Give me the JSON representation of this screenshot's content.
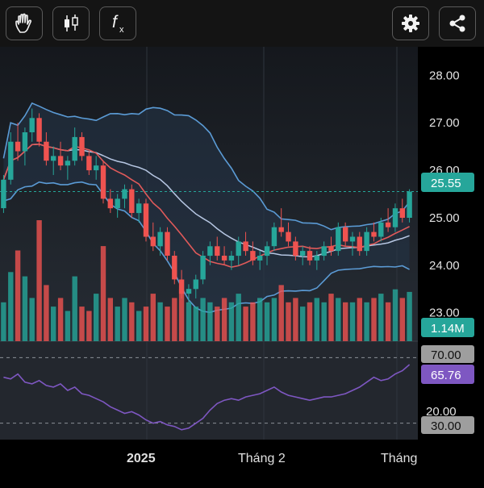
{
  "toolbar": {
    "left_buttons": [
      {
        "icon": "hand-icon",
        "name": "pan-tool-button"
      },
      {
        "icon": "candlestick-icon",
        "name": "chart-type-button"
      },
      {
        "icon": "function-icon",
        "name": "indicators-button",
        "glyph": "f",
        "subglyph": "x"
      }
    ],
    "right_buttons": [
      {
        "icon": "gear-icon",
        "name": "settings-button"
      },
      {
        "icon": "share-icon",
        "name": "share-button"
      }
    ]
  },
  "price_axis": [
    "28.00",
    "27.00",
    "26.00",
    "25.00",
    "24.00",
    "23.00"
  ],
  "current_price": "25.55",
  "volume_label": "1.14M",
  "rsi_axis": [
    "70.00",
    "20.00",
    "30.00"
  ],
  "rsi_value": "65.76",
  "x_axis": [
    "2025",
    "Tháng 2",
    "Tháng"
  ],
  "colors": {
    "up": "#26a69a",
    "down": "#ef5350",
    "bollinger": "#5b9bd5",
    "ma_red": "#e05a5a",
    "ma_light": "#b7c7e3",
    "rsi": "#7e57c2",
    "panel_bg": "#1d2127",
    "bb_fill": "#243548"
  },
  "chart_data": {
    "type": "candlestick",
    "ylim": [
      22.4,
      28.6
    ],
    "price_ticks": [
      28,
      27,
      26,
      25,
      24,
      23
    ],
    "current_price": 25.55,
    "candles": [
      [
        25.2,
        25.9,
        25.1,
        25.8
      ],
      [
        25.8,
        26.8,
        25.7,
        26.6
      ],
      [
        26.6,
        27.0,
        26.2,
        26.4
      ],
      [
        26.4,
        26.9,
        26.1,
        26.8
      ],
      [
        26.8,
        27.3,
        26.6,
        27.1
      ],
      [
        27.1,
        27.2,
        26.5,
        26.6
      ],
      [
        26.6,
        26.8,
        26.1,
        26.2
      ],
      [
        26.2,
        26.5,
        25.9,
        26.3
      ],
      [
        26.3,
        26.6,
        26.0,
        26.1
      ],
      [
        26.1,
        26.3,
        25.8,
        26.2
      ],
      [
        26.2,
        26.9,
        26.1,
        26.7
      ],
      [
        26.7,
        26.8,
        26.2,
        26.3
      ],
      [
        26.3,
        26.4,
        25.9,
        26.0
      ],
      [
        26.0,
        26.3,
        25.8,
        26.1
      ],
      [
        26.1,
        26.2,
        25.3,
        25.4
      ],
      [
        25.4,
        25.6,
        25.1,
        25.2
      ],
      [
        25.2,
        25.5,
        25.0,
        25.4
      ],
      [
        25.4,
        25.7,
        25.2,
        25.6
      ],
      [
        25.6,
        25.7,
        25.0,
        25.1
      ],
      [
        25.1,
        25.4,
        24.9,
        25.3
      ],
      [
        25.3,
        25.4,
        24.5,
        24.6
      ],
      [
        24.6,
        24.9,
        24.3,
        24.4
      ],
      [
        24.4,
        24.8,
        24.2,
        24.7
      ],
      [
        24.7,
        24.8,
        24.1,
        24.2
      ],
      [
        24.2,
        24.3,
        23.6,
        23.7
      ],
      [
        23.7,
        23.9,
        23.3,
        23.4
      ],
      [
        23.4,
        23.6,
        23.2,
        23.5
      ],
      [
        23.5,
        23.8,
        23.3,
        23.7
      ],
      [
        23.7,
        24.3,
        23.6,
        24.2
      ],
      [
        24.2,
        24.5,
        24.0,
        24.4
      ],
      [
        24.4,
        24.6,
        24.1,
        24.2
      ],
      [
        24.2,
        24.4,
        24.0,
        24.1
      ],
      [
        24.1,
        24.3,
        23.9,
        24.2
      ],
      [
        24.2,
        24.6,
        24.0,
        24.5
      ],
      [
        24.5,
        24.7,
        24.2,
        24.3
      ],
      [
        24.3,
        24.5,
        24.0,
        24.1
      ],
      [
        24.1,
        24.3,
        23.9,
        24.2
      ],
      [
        24.2,
        24.5,
        24.0,
        24.4
      ],
      [
        24.4,
        24.9,
        24.3,
        24.8
      ],
      [
        24.8,
        25.2,
        24.6,
        24.7
      ],
      [
        24.7,
        24.9,
        24.4,
        24.5
      ],
      [
        24.5,
        24.6,
        24.1,
        24.2
      ],
      [
        24.2,
        24.4,
        24.0,
        24.3
      ],
      [
        24.3,
        24.4,
        24.0,
        24.1
      ],
      [
        24.1,
        24.3,
        23.9,
        24.2
      ],
      [
        24.2,
        24.5,
        24.1,
        24.4
      ],
      [
        24.4,
        24.6,
        24.2,
        24.3
      ],
      [
        24.3,
        24.9,
        24.2,
        24.8
      ],
      [
        24.8,
        24.9,
        24.4,
        24.5
      ],
      [
        24.5,
        24.7,
        24.2,
        24.6
      ],
      [
        24.6,
        24.7,
        24.2,
        24.3
      ],
      [
        24.3,
        24.8,
        24.2,
        24.7
      ],
      [
        24.7,
        24.9,
        24.5,
        24.6
      ],
      [
        24.6,
        25.0,
        24.5,
        24.9
      ],
      [
        24.9,
        25.2,
        24.7,
        24.8
      ],
      [
        24.8,
        25.3,
        24.7,
        25.2
      ],
      [
        25.2,
        25.4,
        24.9,
        25.0
      ],
      [
        25.0,
        25.6,
        24.9,
        25.55
      ]
    ],
    "volume_unit": "M",
    "volume": [
      0.9,
      1.6,
      2.1,
      1.5,
      1.0,
      2.8,
      1.3,
      0.8,
      1.0,
      0.7,
      1.5,
      0.8,
      0.7,
      1.1,
      2.2,
      1.0,
      0.8,
      1.0,
      0.9,
      0.7,
      0.8,
      1.1,
      0.9,
      0.8,
      1.0,
      1.2,
      0.9,
      0.8,
      1.0,
      0.9,
      0.8,
      1.0,
      0.9,
      1.1,
      0.8,
      0.9,
      1.0,
      0.9,
      1.0,
      1.3,
      0.9,
      1.0,
      0.8,
      0.9,
      1.0,
      0.9,
      1.1,
      1.0,
      0.9,
      0.9,
      1.0,
      0.9,
      1.0,
      1.1,
      0.9,
      1.2,
      1.0,
      1.14
    ],
    "rsi": {
      "ylim": [
        20,
        80
      ],
      "ticks": [
        70,
        30
      ],
      "current": 65.76,
      "values": [
        58,
        57,
        60,
        55,
        54,
        56,
        53,
        52,
        54,
        50,
        52,
        48,
        47,
        45,
        43,
        40,
        38,
        36,
        37,
        35,
        32,
        30,
        31,
        29,
        28,
        26,
        27,
        30,
        33,
        38,
        42,
        44,
        45,
        44,
        46,
        47,
        48,
        50,
        52,
        49,
        47,
        46,
        45,
        44,
        45,
        46,
        46,
        47,
        48,
        50,
        52,
        55,
        58,
        56,
        57,
        60,
        62,
        65.76
      ]
    }
  }
}
